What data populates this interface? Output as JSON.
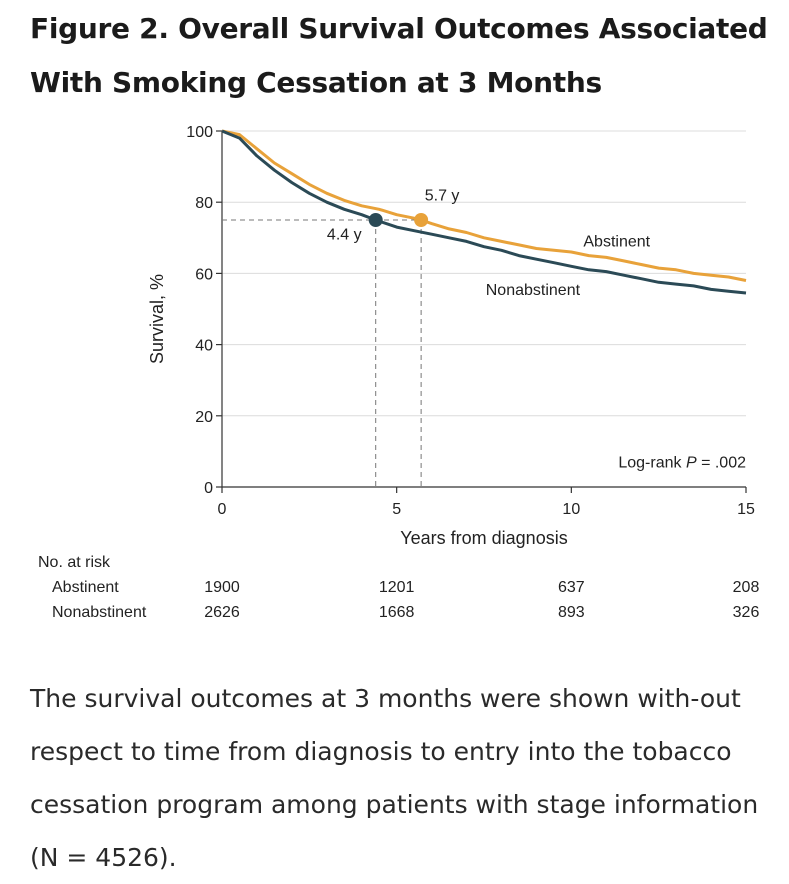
{
  "figure": {
    "title_line1": "Figure 2.  Overall Survival Outcomes Associated",
    "title_line2": "With Smoking Cessation at 3 Months"
  },
  "chart_data": {
    "type": "line",
    "title": "Figure 2.  Overall Survival Outcomes Associated With Smoking Cessation at 3 Months",
    "xlabel": "Years from diagnosis",
    "ylabel": "Survival, %",
    "xlim": [
      0,
      15
    ],
    "ylim": [
      0,
      100
    ],
    "xticks": [
      0,
      5,
      10,
      15
    ],
    "yticks": [
      0,
      20,
      40,
      60,
      80,
      100
    ],
    "grid": "horizontal",
    "series": [
      {
        "name": "Abstinent",
        "color": "#e8a23a",
        "x": [
          0,
          0.5,
          1,
          1.5,
          2,
          2.5,
          3,
          3.5,
          4,
          4.5,
          5,
          5.5,
          5.7,
          6,
          6.5,
          7,
          7.5,
          8,
          8.5,
          9,
          9.5,
          10,
          10.5,
          11,
          11.5,
          12,
          12.5,
          13,
          13.5,
          14,
          14.5,
          15
        ],
        "y": [
          100,
          99,
          95,
          91,
          88,
          85,
          82.5,
          80.5,
          79,
          78,
          76.5,
          75.5,
          75,
          74,
          72.5,
          71.5,
          70,
          69,
          68,
          67,
          66.5,
          66,
          65,
          64.5,
          63.5,
          62.5,
          61.5,
          61,
          60,
          59.5,
          59,
          58
        ]
      },
      {
        "name": "Nonabstinent",
        "color": "#2b4a56",
        "x": [
          0,
          0.5,
          1,
          1.5,
          2,
          2.5,
          3,
          3.5,
          4,
          4.4,
          5,
          5.5,
          6,
          6.5,
          7,
          7.5,
          8,
          8.5,
          9,
          9.5,
          10,
          10.5,
          11,
          11.5,
          12,
          12.5,
          13,
          13.5,
          14,
          14.5,
          15
        ],
        "y": [
          100,
          98,
          93,
          89,
          85.5,
          82.5,
          80,
          78,
          76.5,
          75,
          73,
          72,
          71,
          70,
          69,
          67.5,
          66.5,
          65,
          64,
          63,
          62,
          61,
          60.5,
          59.5,
          58.5,
          57.5,
          57,
          56.5,
          55.5,
          55,
          54.5
        ]
      }
    ],
    "series_labels": [
      {
        "text": "Abstinent",
        "x": 11.3,
        "y": 67.5
      },
      {
        "text": "Nonabstinent",
        "x": 8.9,
        "y": 54
      }
    ],
    "median_markers": [
      {
        "series": "Nonabstinent",
        "x": 4.4,
        "y": 75,
        "label": "4.4 y",
        "color": "#2b4a56",
        "label_x": 3.5,
        "label_y": 69.5
      },
      {
        "series": "Abstinent",
        "x": 5.7,
        "y": 75,
        "label": "5.7 y",
        "color": "#e8a23a",
        "label_x": 6.3,
        "label_y": 80.5
      }
    ],
    "annotation": {
      "text_prefix": "Log-rank ",
      "text_italic": "P",
      "text_suffix": " = .002",
      "x": 15,
      "y": 5.5
    },
    "risk_table": {
      "heading": "No. at risk",
      "x_positions": [
        0,
        5,
        10,
        15
      ],
      "rows": [
        {
          "label": "Abstinent",
          "values": [
            "1900",
            "1201",
            "637",
            "208"
          ]
        },
        {
          "label": "Nonabstinent",
          "values": [
            "2626",
            "1668",
            "893",
            "326"
          ]
        }
      ]
    }
  },
  "caption": "The survival outcomes at 3 months were shown with-out respect to time from diagnosis to entry into the tobacco cessation program among patients with stage information (N = 4526)."
}
